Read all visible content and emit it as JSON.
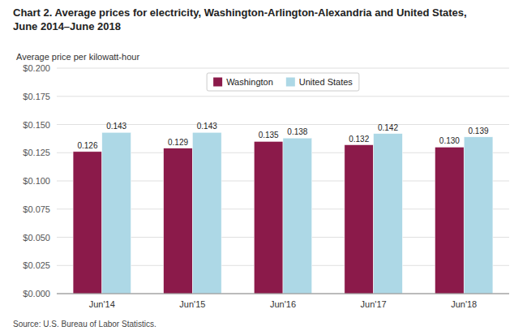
{
  "chart_data": {
    "type": "bar",
    "title": "Chart 2. Average prices for electricity, Washington-Arlington-Alexandria and United States,\nJune 2014–June 2018",
    "y_label": "Average price per kilowatt-hour",
    "source": "Source: U.S. Bureau of Labor Statistics.",
    "categories": [
      "Jun'14",
      "Jun'15",
      "Jun'16",
      "Jun'17",
      "Jun'18"
    ],
    "series": [
      {
        "name": "Washington",
        "color": "#8B1A4A",
        "values": [
          0.126,
          0.129,
          0.135,
          0.132,
          0.13
        ],
        "value_labels": [
          "0.126",
          "0.129",
          "0.135",
          "0.132",
          "0.130"
        ]
      },
      {
        "name": "United States",
        "color": "#ADD8E6",
        "values": [
          0.143,
          0.143,
          0.138,
          0.142,
          0.139
        ],
        "value_labels": [
          "0.143",
          "0.143",
          "0.138",
          "0.142",
          "0.139"
        ]
      }
    ],
    "ylim": [
      0.0,
      0.2
    ],
    "yticks": [
      {
        "value": 0.0,
        "label": "$0.000"
      },
      {
        "value": 0.025,
        "label": "$0.025"
      },
      {
        "value": 0.05,
        "label": "$0.050"
      },
      {
        "value": 0.075,
        "label": "$0.075"
      },
      {
        "value": 0.1,
        "label": "$0.100"
      },
      {
        "value": 0.125,
        "label": "$0.125"
      },
      {
        "value": 0.15,
        "label": "$0.150"
      },
      {
        "value": 0.175,
        "label": "$0.175"
      },
      {
        "value": 0.2,
        "label": "$0.200"
      }
    ],
    "grid": true,
    "legend": "top",
    "data_labels": true
  }
}
